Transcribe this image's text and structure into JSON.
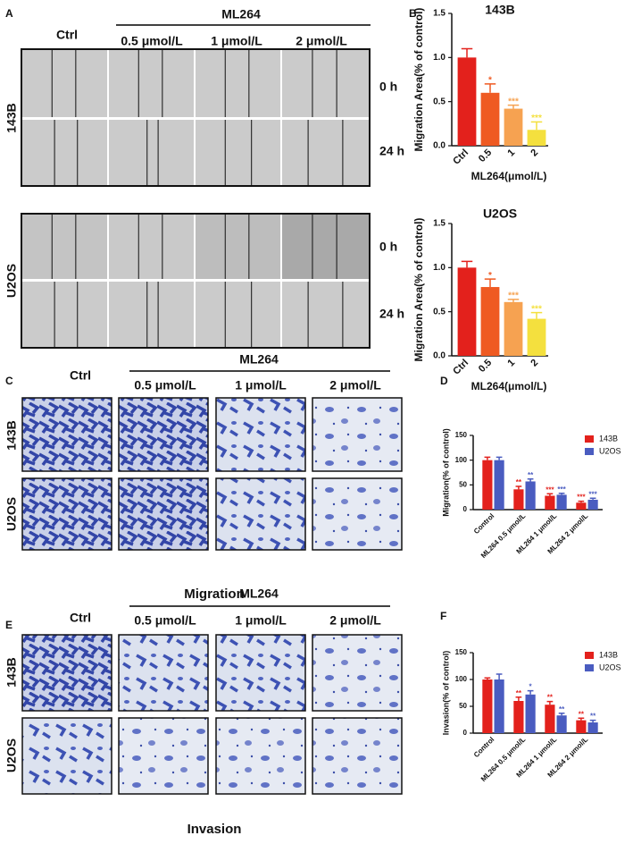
{
  "figure": {
    "panel_labels": [
      "A",
      "B",
      "C",
      "D",
      "E",
      "F"
    ],
    "scratch": {
      "group": "ML264",
      "columns": [
        "Ctrl",
        "0.5 μmol/L",
        "1 μmol/L",
        "2 μmol/L"
      ],
      "cell_lines": [
        "143B",
        "U2OS"
      ],
      "times": [
        "0 h",
        "24 h"
      ]
    },
    "migration": {
      "group": "ML264",
      "columns": [
        "Ctrl",
        "0.5 μmol/L",
        "1 μmol/L",
        "2 μmol/L"
      ],
      "cell_lines": [
        "143B",
        "U2OS"
      ],
      "caption": "Migration"
    },
    "invasion": {
      "group": "ML264",
      "columns": [
        "Ctrl",
        "0.5 μmol/L",
        "1 μmol/L",
        "2 μmol/L"
      ],
      "cell_lines": [
        "143B",
        "U2OS"
      ],
      "caption": "Invasion"
    }
  },
  "chart_data": [
    {
      "type": "bar",
      "title": "143B",
      "xlabel": "ML264(μmol/L)",
      "ylabel": "Migration Area(% of control)",
      "categories": [
        "Ctrl",
        "0.5",
        "1",
        "2"
      ],
      "values": [
        1.0,
        0.6,
        0.42,
        0.18
      ],
      "errors": [
        0.1,
        0.1,
        0.04,
        0.09
      ],
      "significance": [
        null,
        "*",
        "***",
        "***"
      ],
      "colors": [
        "#e3211c",
        "#ef5a22",
        "#f6a251",
        "#f4e03e"
      ],
      "ylim": [
        0,
        1.5
      ],
      "yticks": [
        {
          "value": 0,
          "label": "0.0"
        },
        {
          "value": 0.5,
          "label": "0.5"
        },
        {
          "value": 1,
          "label": "1.0"
        },
        {
          "value": 1.5,
          "label": "1.5"
        }
      ]
    },
    {
      "type": "bar",
      "title": "U2OS",
      "xlabel": "ML264(μmol/L)",
      "ylabel": "Migration Area(% of control)",
      "categories": [
        "Ctrl",
        "0.5",
        "1",
        "2"
      ],
      "values": [
        1.0,
        0.78,
        0.61,
        0.42
      ],
      "errors": [
        0.07,
        0.09,
        0.03,
        0.07
      ],
      "significance": [
        null,
        "*",
        "***",
        "***"
      ],
      "colors": [
        "#e3211c",
        "#ef5a22",
        "#f6a251",
        "#f4e03e"
      ],
      "ylim": [
        0,
        1.5
      ],
      "yticks": [
        {
          "value": 0,
          "label": "0.0"
        },
        {
          "value": 0.5,
          "label": "0.5"
        },
        {
          "value": 1,
          "label": "1.0"
        },
        {
          "value": 1.5,
          "label": "1.5"
        }
      ]
    },
    {
      "type": "grouped_bar",
      "ylabel": "Migration(% of control)",
      "legend": "upper right",
      "categories": [
        "Control",
        "ML264 0.5 μmol/L",
        "ML264 1 μmol/L",
        "ML264 2 μmol/L"
      ],
      "series": [
        {
          "name": "143B",
          "color": "#e3211c",
          "values": [
            100,
            41,
            28,
            14
          ],
          "errors": [
            6,
            6,
            4,
            3
          ],
          "significance": [
            null,
            "**",
            "***",
            "***"
          ]
        },
        {
          "name": "U2OS",
          "color": "#4a5cc0",
          "values": [
            100,
            57,
            30,
            20
          ],
          "errors": [
            6,
            5,
            3,
            3
          ],
          "significance": [
            null,
            "**",
            "***",
            "***"
          ]
        }
      ],
      "ylim": [
        0,
        150
      ],
      "yticks": [
        0,
        50,
        100,
        150
      ]
    },
    {
      "type": "grouped_bar",
      "ylabel": "Invasion(% of control)",
      "legend": "upper right",
      "categories": [
        "Control",
        "ML264 0.5 μmol/L",
        "ML264 1 μmol/L",
        "ML264 2 μmol/L"
      ],
      "series": [
        {
          "name": "143B",
          "color": "#e3211c",
          "values": [
            100,
            60,
            53,
            24
          ],
          "errors": [
            3,
            7,
            6,
            4
          ],
          "significance": [
            null,
            "**",
            "**",
            "**"
          ]
        },
        {
          "name": "U2OS",
          "color": "#4a5cc0",
          "values": [
            100,
            72,
            33,
            20
          ],
          "errors": [
            10,
            7,
            4,
            4
          ],
          "significance": [
            null,
            "*",
            "**",
            "**"
          ]
        }
      ],
      "ylim": [
        0,
        150
      ],
      "yticks": [
        0,
        50,
        100,
        150
      ]
    }
  ]
}
